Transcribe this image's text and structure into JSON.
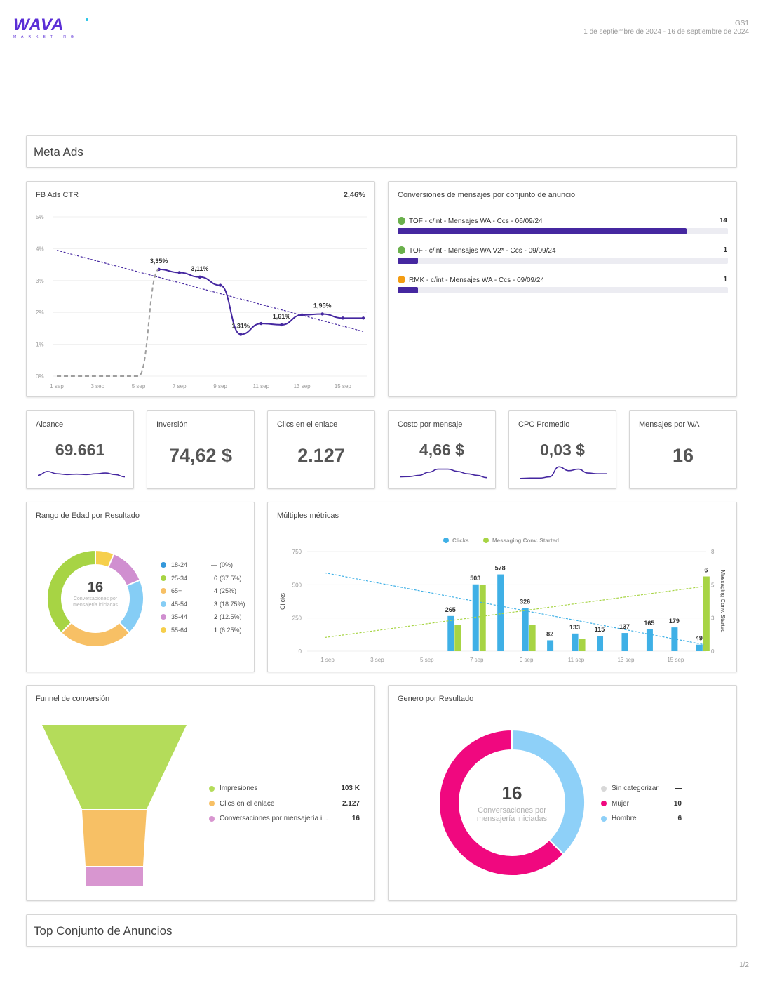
{
  "header": {
    "logo_text": "WAVA",
    "logo_sub": "MARKETING",
    "report_code": "GS1",
    "date_range": "1 de septiembre de 2024 - 16 de septiembre de 2024"
  },
  "sections": {
    "meta_ads": "Meta Ads",
    "top_sets": "Top Conjunto de Anuncios"
  },
  "ctr_chart": {
    "title": "FB Ads CTR",
    "total": "2,46%",
    "chart_data": {
      "type": "line",
      "x": [
        "1 sep",
        "2 sep",
        "3 sep",
        "4 sep",
        "5 sep",
        "6 sep",
        "7 sep",
        "8 sep",
        "9 sep",
        "10 sep",
        "11 sep",
        "12 sep",
        "13 sep",
        "14 sep",
        "15 sep",
        "16 sep"
      ],
      "x_tick_labels": [
        "1 sep",
        "3 sep",
        "5 sep",
        "7 sep",
        "9 sep",
        "11 sep",
        "13 sep",
        "15 sep"
      ],
      "y_tick_labels": [
        "0%",
        "1%",
        "2%",
        "3%",
        "4%",
        "5%"
      ],
      "ylim": [
        0,
        5
      ],
      "series": [
        {
          "values": [
            null,
            null,
            null,
            null,
            null,
            3.35,
            3.25,
            3.11,
            2.85,
            1.31,
            1.65,
            1.61,
            1.92,
            1.95,
            1.82,
            1.82
          ],
          "color": "#4527a0"
        },
        {
          "values": [
            0,
            0,
            0,
            0,
            0,
            3.35,
            null,
            null,
            null,
            null,
            null,
            null,
            null,
            null,
            null,
            null
          ],
          "color": "#9e9e9e",
          "style": "dashed"
        }
      ],
      "trend": {
        "from": 3.95,
        "to": 1.4,
        "color": "#4527a0"
      },
      "data_labels": [
        {
          "index": 5,
          "text": "3,35%"
        },
        {
          "index": 7,
          "text": "3,11%"
        },
        {
          "index": 9,
          "text": "1,31%"
        },
        {
          "index": 11,
          "text": "1,61%"
        },
        {
          "index": 13,
          "text": "1,95%"
        }
      ]
    }
  },
  "conversions": {
    "title": "Conversiones de mensajes por conjunto de anuncio",
    "items": [
      {
        "label": "TOF - c/int - Mensajes WA - Ccs - 06/09/24",
        "value": "14",
        "fraction": 0.875,
        "color": "#6ab04c"
      },
      {
        "label": "TOF - c/int - Mensajes WA V2* - Ccs - 09/09/24",
        "value": "1",
        "fraction": 0.0625,
        "color": "#6ab04c"
      },
      {
        "label": "RMK - c/int - Mensajes WA - Ccs - 09/09/24",
        "value": "1",
        "fraction": 0.0625,
        "color": "#f39c12"
      }
    ]
  },
  "kpis": [
    {
      "label": "Alcance",
      "value": "69.661",
      "spark": [
        0.3,
        0.55,
        0.4,
        0.35,
        0.38,
        0.35,
        0.4,
        0.45,
        0.35,
        0.2
      ]
    },
    {
      "label": "Inversión",
      "value": "74,62 $"
    },
    {
      "label": "Clics en el enlace",
      "value": "2.127"
    },
    {
      "label": "Costo por mensaje",
      "value": "4,66 $",
      "spark": [
        0.2,
        0.22,
        0.3,
        0.5,
        0.7,
        0.7,
        0.55,
        0.4,
        0.3,
        0.15
      ]
    },
    {
      "label": "CPC Promedio",
      "value": "0,03 $",
      "spark": [
        0.1,
        0.12,
        0.12,
        0.2,
        0.85,
        0.6,
        0.7,
        0.45,
        0.4,
        0.4
      ]
    },
    {
      "label": "Mensajes por WA",
      "value": "16"
    }
  ],
  "age": {
    "title": "Rango de Edad por Resultado",
    "center_value": "16",
    "center_label": "Conversaciones por mensajería iniciadas",
    "legend": [
      {
        "label": "18-24",
        "value": "—",
        "pct": "(0%)",
        "color": "#3498db",
        "n": 0
      },
      {
        "label": "25-34",
        "value": "6",
        "pct": "(37.5%)",
        "color": "#a7d444",
        "n": 6
      },
      {
        "label": "65+",
        "value": "4",
        "pct": "(25%)",
        "color": "#f7c065",
        "n": 4
      },
      {
        "label": "45-54",
        "value": "3",
        "pct": "(18.75%)",
        "color": "#85cdf5",
        "n": 3
      },
      {
        "label": "35-44",
        "value": "2",
        "pct": "(12.5%)",
        "color": "#d08fd0",
        "n": 2
      },
      {
        "label": "55-64",
        "value": "1",
        "pct": "(6.25%)",
        "color": "#f6cf4c",
        "n": 1
      }
    ]
  },
  "multi": {
    "title": "Múltiples métricas",
    "legend": [
      {
        "label": "Clicks",
        "color": "#3fb0e6"
      },
      {
        "label": "Messaging Conv. Started",
        "color": "#a7d444"
      }
    ],
    "y_left_label": "Clicks",
    "y_right_label": "Messaging Conv. Started",
    "chart_data": {
      "type": "bar",
      "categories": [
        "1 sep",
        "2 sep",
        "3 sep",
        "4 sep",
        "5 sep",
        "6 sep",
        "7 sep",
        "8 sep",
        "9 sep",
        "10 sep",
        "11 sep",
        "12 sep",
        "13 sep",
        "14 sep",
        "15 sep",
        "16 sep"
      ],
      "x_tick_labels": [
        "1 sep",
        "3 sep",
        "5 sep",
        "7 sep",
        "9 sep",
        "11 sep",
        "13 sep",
        "15 sep"
      ],
      "y_left_ticks": [
        "0",
        "250",
        "500",
        "750"
      ],
      "y_right_ticks": [
        "0",
        "3",
        "5",
        "8"
      ],
      "ylim_left": [
        0,
        750
      ],
      "ylim_right": [
        0,
        8
      ],
      "series": [
        {
          "name": "Clicks",
          "axis": "left",
          "color": "#3fb0e6",
          "values": [
            0,
            0,
            0,
            0,
            0,
            265,
            503,
            578,
            326,
            82,
            133,
            115,
            137,
            165,
            179,
            49
          ]
        },
        {
          "name": "Messaging Conv. Started",
          "axis": "right",
          "color": "#a7d444",
          "values": [
            0,
            0,
            0,
            0,
            0,
            2.1,
            5.3,
            0,
            2.1,
            0,
            1.0,
            0,
            0,
            0,
            0,
            6
          ]
        }
      ],
      "data_labels": [
        "",
        "",
        "",
        "",
        "",
        "265",
        "503",
        "578",
        "326",
        "82",
        "133",
        "115",
        "137",
        "165",
        "179",
        "49"
      ],
      "right_labels": [
        {
          "index": 15,
          "text": "6"
        }
      ],
      "trend_left": {
        "from": 590,
        "to": 50
      },
      "trend_right": {
        "from": 1.1,
        "to": 5.2
      }
    }
  },
  "funnel": {
    "title": "Funnel de conversión",
    "legend": [
      {
        "label": "Impresiones",
        "value": "103 K",
        "color": "#b4dc5a"
      },
      {
        "label": "Clics en el enlace",
        "value": "2.127",
        "color": "#f7c065"
      },
      {
        "label": "Conversaciones por mensajería i...",
        "value": "16",
        "color": "#d896d0"
      }
    ]
  },
  "gender": {
    "title": "Genero por Resultado",
    "center_value": "16",
    "center_label_1": "Conversaciones por",
    "center_label_2": "mensajería iniciadas",
    "legend": [
      {
        "label": "Sin categorizar",
        "value": "—",
        "color": "#d8d8d8",
        "n": 0
      },
      {
        "label": "Mujer",
        "value": "10",
        "color": "#f0087f",
        "n": 10
      },
      {
        "label": "Hombre",
        "value": "6",
        "color": "#8ed0f8",
        "n": 6
      }
    ]
  },
  "footer": {
    "page": "1/2"
  }
}
